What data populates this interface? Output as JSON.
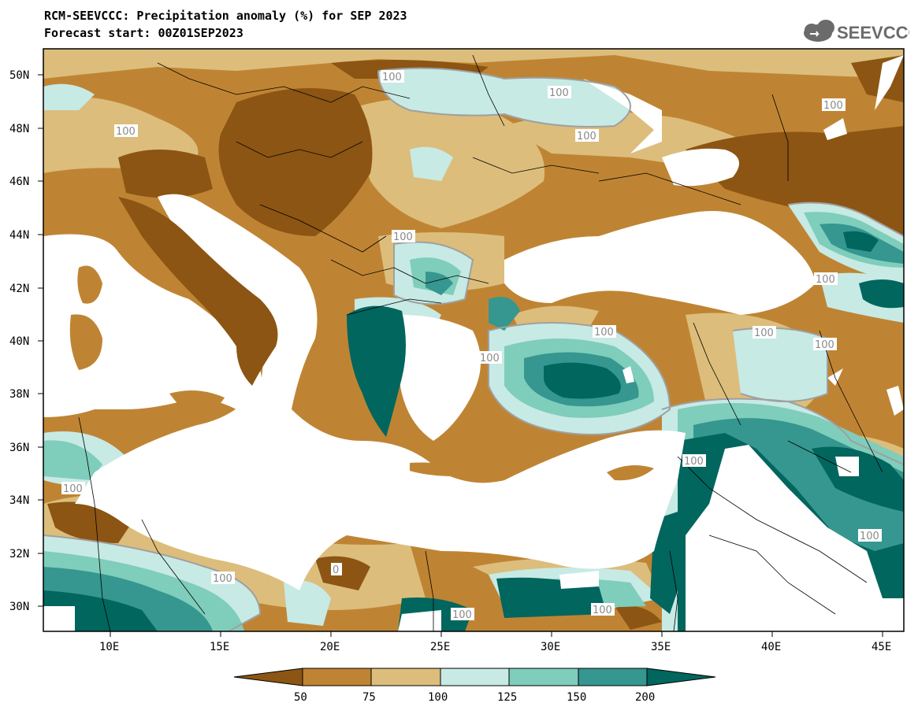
{
  "title_line1": "RCM-SEEVCCC: Precipitation anomaly (%) for SEP 2023",
  "title_line2": "Forecast start: 00Z01SEP2023",
  "logo_text": "SEEVCCC",
  "lat_labels": [
    "50N",
    "48N",
    "46N",
    "44N",
    "42N",
    "40N",
    "38N",
    "36N",
    "34N",
    "32N",
    "30N"
  ],
  "lon_labels": [
    "10E",
    "15E",
    "20E",
    "25E",
    "30E",
    "35E",
    "40E",
    "45E"
  ],
  "contour_label": "100",
  "contour_label_partial": "0",
  "colorbar": {
    "labels": [
      "50",
      "75",
      "100",
      "125",
      "150",
      "200"
    ],
    "colors": [
      "#8c5513",
      "#bf8433",
      "#dcbd7c",
      "#c7eae5",
      "#7fcdbb",
      "#35978f",
      "#01665e"
    ]
  },
  "colors": {
    "very_dry": "#8c5513",
    "dry": "#bf8433",
    "slightly_dry": "#dcbd7c",
    "slightly_wet": "#c7eae5",
    "wet": "#7fcdbb",
    "very_wet": "#35978f",
    "extreme_wet": "#01665e",
    "sea": "#ffffff"
  }
}
